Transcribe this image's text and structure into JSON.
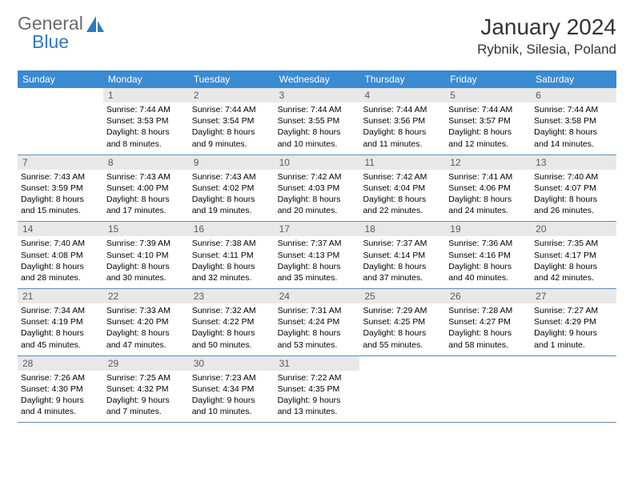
{
  "logo": {
    "line1": "General",
    "line2": "Blue"
  },
  "title": "January 2024",
  "location": "Rybnik, Silesia, Poland",
  "day_headers": [
    "Sunday",
    "Monday",
    "Tuesday",
    "Wednesday",
    "Thursday",
    "Friday",
    "Saturday"
  ],
  "colors": {
    "header_bg": "#3a8bd1",
    "daynum_bg": "#e8e8e8",
    "border": "#5a8fb8",
    "logo_gray": "#6b6b6b",
    "logo_blue": "#2f7ac0"
  },
  "weeks": [
    [
      {
        "n": "",
        "lines": []
      },
      {
        "n": "1",
        "lines": [
          "Sunrise: 7:44 AM",
          "Sunset: 3:53 PM",
          "Daylight: 8 hours and 8 minutes."
        ]
      },
      {
        "n": "2",
        "lines": [
          "Sunrise: 7:44 AM",
          "Sunset: 3:54 PM",
          "Daylight: 8 hours and 9 minutes."
        ]
      },
      {
        "n": "3",
        "lines": [
          "Sunrise: 7:44 AM",
          "Sunset: 3:55 PM",
          "Daylight: 8 hours and 10 minutes."
        ]
      },
      {
        "n": "4",
        "lines": [
          "Sunrise: 7:44 AM",
          "Sunset: 3:56 PM",
          "Daylight: 8 hours and 11 minutes."
        ]
      },
      {
        "n": "5",
        "lines": [
          "Sunrise: 7:44 AM",
          "Sunset: 3:57 PM",
          "Daylight: 8 hours and 12 minutes."
        ]
      },
      {
        "n": "6",
        "lines": [
          "Sunrise: 7:44 AM",
          "Sunset: 3:58 PM",
          "Daylight: 8 hours and 14 minutes."
        ]
      }
    ],
    [
      {
        "n": "7",
        "lines": [
          "Sunrise: 7:43 AM",
          "Sunset: 3:59 PM",
          "Daylight: 8 hours and 15 minutes."
        ]
      },
      {
        "n": "8",
        "lines": [
          "Sunrise: 7:43 AM",
          "Sunset: 4:00 PM",
          "Daylight: 8 hours and 17 minutes."
        ]
      },
      {
        "n": "9",
        "lines": [
          "Sunrise: 7:43 AM",
          "Sunset: 4:02 PM",
          "Daylight: 8 hours and 19 minutes."
        ]
      },
      {
        "n": "10",
        "lines": [
          "Sunrise: 7:42 AM",
          "Sunset: 4:03 PM",
          "Daylight: 8 hours and 20 minutes."
        ]
      },
      {
        "n": "11",
        "lines": [
          "Sunrise: 7:42 AM",
          "Sunset: 4:04 PM",
          "Daylight: 8 hours and 22 minutes."
        ]
      },
      {
        "n": "12",
        "lines": [
          "Sunrise: 7:41 AM",
          "Sunset: 4:06 PM",
          "Daylight: 8 hours and 24 minutes."
        ]
      },
      {
        "n": "13",
        "lines": [
          "Sunrise: 7:40 AM",
          "Sunset: 4:07 PM",
          "Daylight: 8 hours and 26 minutes."
        ]
      }
    ],
    [
      {
        "n": "14",
        "lines": [
          "Sunrise: 7:40 AM",
          "Sunset: 4:08 PM",
          "Daylight: 8 hours and 28 minutes."
        ]
      },
      {
        "n": "15",
        "lines": [
          "Sunrise: 7:39 AM",
          "Sunset: 4:10 PM",
          "Daylight: 8 hours and 30 minutes."
        ]
      },
      {
        "n": "16",
        "lines": [
          "Sunrise: 7:38 AM",
          "Sunset: 4:11 PM",
          "Daylight: 8 hours and 32 minutes."
        ]
      },
      {
        "n": "17",
        "lines": [
          "Sunrise: 7:37 AM",
          "Sunset: 4:13 PM",
          "Daylight: 8 hours and 35 minutes."
        ]
      },
      {
        "n": "18",
        "lines": [
          "Sunrise: 7:37 AM",
          "Sunset: 4:14 PM",
          "Daylight: 8 hours and 37 minutes."
        ]
      },
      {
        "n": "19",
        "lines": [
          "Sunrise: 7:36 AM",
          "Sunset: 4:16 PM",
          "Daylight: 8 hours and 40 minutes."
        ]
      },
      {
        "n": "20",
        "lines": [
          "Sunrise: 7:35 AM",
          "Sunset: 4:17 PM",
          "Daylight: 8 hours and 42 minutes."
        ]
      }
    ],
    [
      {
        "n": "21",
        "lines": [
          "Sunrise: 7:34 AM",
          "Sunset: 4:19 PM",
          "Daylight: 8 hours and 45 minutes."
        ]
      },
      {
        "n": "22",
        "lines": [
          "Sunrise: 7:33 AM",
          "Sunset: 4:20 PM",
          "Daylight: 8 hours and 47 minutes."
        ]
      },
      {
        "n": "23",
        "lines": [
          "Sunrise: 7:32 AM",
          "Sunset: 4:22 PM",
          "Daylight: 8 hours and 50 minutes."
        ]
      },
      {
        "n": "24",
        "lines": [
          "Sunrise: 7:31 AM",
          "Sunset: 4:24 PM",
          "Daylight: 8 hours and 53 minutes."
        ]
      },
      {
        "n": "25",
        "lines": [
          "Sunrise: 7:29 AM",
          "Sunset: 4:25 PM",
          "Daylight: 8 hours and 55 minutes."
        ]
      },
      {
        "n": "26",
        "lines": [
          "Sunrise: 7:28 AM",
          "Sunset: 4:27 PM",
          "Daylight: 8 hours and 58 minutes."
        ]
      },
      {
        "n": "27",
        "lines": [
          "Sunrise: 7:27 AM",
          "Sunset: 4:29 PM",
          "Daylight: 9 hours and 1 minute."
        ]
      }
    ],
    [
      {
        "n": "28",
        "lines": [
          "Sunrise: 7:26 AM",
          "Sunset: 4:30 PM",
          "Daylight: 9 hours and 4 minutes."
        ]
      },
      {
        "n": "29",
        "lines": [
          "Sunrise: 7:25 AM",
          "Sunset: 4:32 PM",
          "Daylight: 9 hours and 7 minutes."
        ]
      },
      {
        "n": "30",
        "lines": [
          "Sunrise: 7:23 AM",
          "Sunset: 4:34 PM",
          "Daylight: 9 hours and 10 minutes."
        ]
      },
      {
        "n": "31",
        "lines": [
          "Sunrise: 7:22 AM",
          "Sunset: 4:35 PM",
          "Daylight: 9 hours and 13 minutes."
        ]
      },
      {
        "n": "",
        "lines": []
      },
      {
        "n": "",
        "lines": []
      },
      {
        "n": "",
        "lines": []
      }
    ]
  ]
}
